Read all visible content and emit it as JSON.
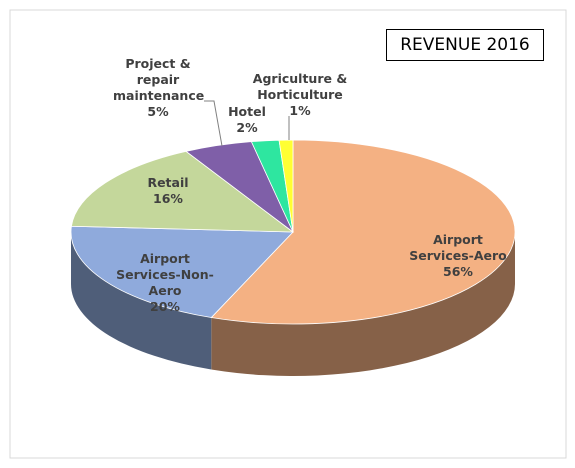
{
  "chart_data": {
    "type": "pie",
    "title": "REVENUE 2016",
    "categories": [
      "Airport Services-Aero",
      "Airport Services-Non-Aero",
      "Retail",
      "Project & repair maintenance",
      "Hotel",
      "Agriculture & Horticulture"
    ],
    "values": [
      56,
      20,
      16,
      5,
      2,
      1
    ],
    "value_labels": [
      "56%",
      "20%",
      "16%",
      "5%",
      "2%",
      "1%"
    ],
    "colors": [
      "#f4b183",
      "#8faadc",
      "#c4d79b",
      "#7f5fa8",
      "#2ee6a0",
      "#ffff33"
    ]
  }
}
